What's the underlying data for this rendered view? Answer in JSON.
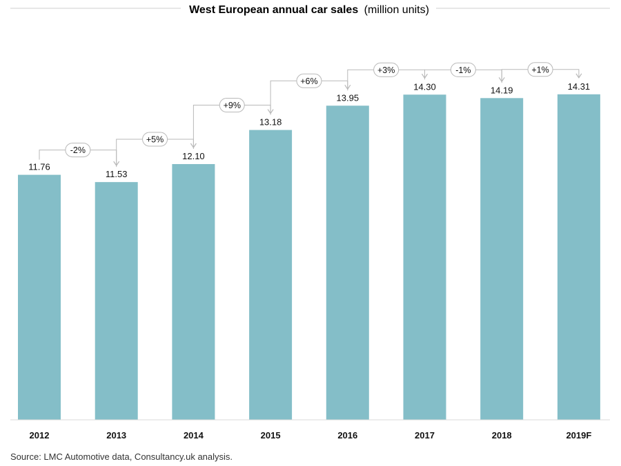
{
  "chart_data": {
    "type": "bar",
    "title_main": "West European annual car sales",
    "title_unit": "(million units)",
    "categories": [
      "2012",
      "2013",
      "2014",
      "2015",
      "2016",
      "2017",
      "2018",
      "2019F"
    ],
    "values": [
      11.76,
      11.53,
      12.1,
      13.18,
      13.95,
      14.3,
      14.19,
      14.31
    ],
    "value_labels": [
      "11.76",
      "11.53",
      "12.10",
      "13.18",
      "13.95",
      "14.30",
      "14.19",
      "14.31"
    ],
    "changes": [
      "-2%",
      "+5%",
      "+9%",
      "+6%",
      "+3%",
      "-1%",
      "+1%"
    ],
    "ylim": [
      4,
      15
    ],
    "bar_color": "#84bec8",
    "annotation_line_color": "#b8b8b8",
    "grid": false,
    "legend": "none"
  },
  "source": "Source: LMC Automotive data, Consultancy.uk analysis."
}
